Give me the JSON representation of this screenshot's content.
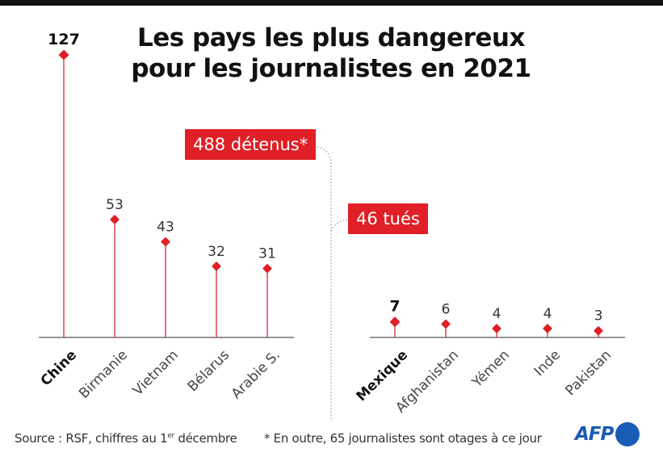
{
  "title_line1": "Les pays les plus dangereux",
  "title_line2": "pour les journalistes en 2021",
  "callouts": {
    "detained": "488 détenus*",
    "killed": "46 tués"
  },
  "footer": {
    "source_prefix": "Source : RSF, chiffres au 1",
    "source_sup": "er",
    "source_suffix": " décembre",
    "note": "* En outre, 65 journalistes sont otages à ce jour",
    "logo": "AFP"
  },
  "colors": {
    "accent": "#e01f26",
    "stem": "#d9474d",
    "axis": "#555555",
    "logo": "#1a5bb5"
  },
  "chart_data": [
    {
      "type": "lollipop",
      "name": "détenus",
      "title": "488 détenus*",
      "categories": [
        "Chine",
        "Birmanie",
        "Vietnam",
        "Bélarus",
        "Arabie S."
      ],
      "values": [
        127,
        53,
        43,
        32,
        31
      ],
      "highlight": "Chine",
      "ylim": [
        0,
        127
      ],
      "grid": false
    },
    {
      "type": "lollipop",
      "name": "tués",
      "title": "46 tués",
      "categories": [
        "Mexique",
        "Afghanistan",
        "Yémen",
        "Inde",
        "Pakistan"
      ],
      "values": [
        7,
        6,
        4,
        4,
        3
      ],
      "highlight": "Mexique",
      "ylim": [
        0,
        127
      ],
      "grid": false
    }
  ]
}
